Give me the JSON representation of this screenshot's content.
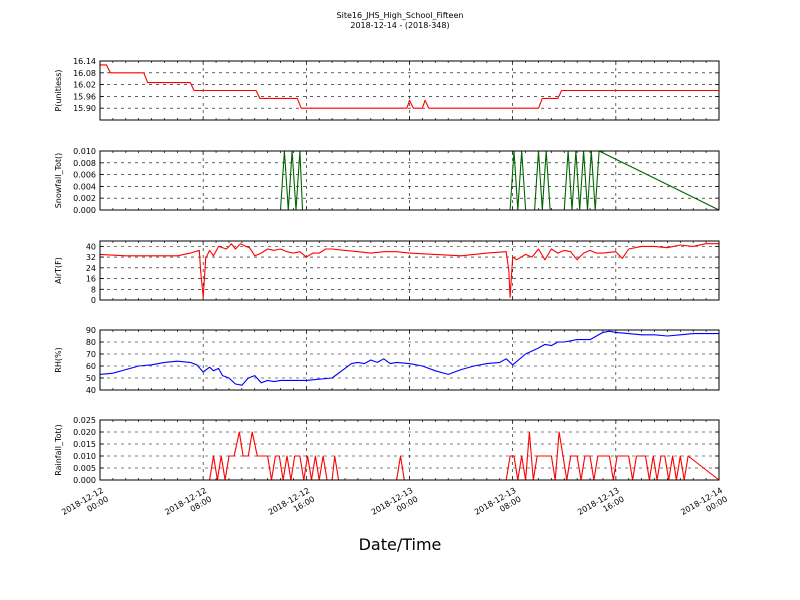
{
  "figure": {
    "title": "Site16_JHS_High_School_Fifteen",
    "subtitle": "2018-12-14 - (2018-348)",
    "xlabel": "Date/Time"
  },
  "chart_data": [
    {
      "type": "line",
      "ylabel": "P(unitless)",
      "ylim": [
        15.84,
        16.14
      ],
      "yticks": [
        "15.90",
        "15.96",
        "16.02",
        "16.08",
        "16.14"
      ],
      "ytick_values": [
        15.9,
        15.96,
        16.02,
        16.08,
        16.14
      ],
      "xlim": [
        0,
        48
      ],
      "xtick_labels": [
        [
          "2018-12-12",
          "00:00"
        ],
        [
          "2018-12-12",
          "08:00"
        ],
        [
          "2018-12-12",
          "16:00"
        ],
        [
          "2018-12-13",
          "00:00"
        ],
        [
          "2018-12-13",
          "08:00"
        ],
        [
          "2018-12-13",
          "16:00"
        ],
        [
          "2018-12-14",
          "00:00"
        ]
      ],
      "grid": true,
      "series": [
        {
          "color": "#ff0000",
          "x": [
            0,
            0.5,
            0.8,
            1.0,
            3.4,
            3.7,
            7.0,
            7.3,
            12.1,
            12.4,
            15.3,
            15.6,
            23.8,
            24.0,
            24.3,
            25.0,
            25.2,
            25.5,
            34.0,
            34.3,
            35.5,
            35.8,
            48
          ],
          "values": [
            16.12,
            16.12,
            16.08,
            16.08,
            16.08,
            16.03,
            16.03,
            15.99,
            15.99,
            15.95,
            15.95,
            15.9,
            15.9,
            15.94,
            15.9,
            15.9,
            15.94,
            15.9,
            15.9,
            15.95,
            15.95,
            15.99,
            15.99
          ]
        }
      ]
    },
    {
      "type": "line",
      "ylabel": "Snowfall_Tot()",
      "ylim": [
        0,
        0.01
      ],
      "yticks": [
        "0.000",
        "0.002",
        "0.004",
        "0.006",
        "0.008",
        "0.010"
      ],
      "ytick_values": [
        0,
        0.002,
        0.004,
        0.006,
        0.008,
        0.01
      ],
      "xlim": [
        0,
        48
      ],
      "grid": true,
      "series": [
        {
          "color": "#006400",
          "x": [
            0,
            14.0,
            14.3,
            14.6,
            14.9,
            15.2,
            15.5,
            15.7,
            16.0,
            31.8,
            32.1,
            32.4,
            32.7,
            33.0,
            33.7,
            34.0,
            34.3,
            34.6,
            34.9,
            36.0,
            36.3,
            36.6,
            36.9,
            37.2,
            37.5,
            37.8,
            38.1,
            38.4,
            38.7,
            48
          ],
          "values": [
            0,
            0,
            0.01,
            0,
            0.01,
            0,
            0.01,
            0,
            0,
            0,
            0.01,
            0,
            0.01,
            0,
            0,
            0.01,
            0,
            0.01,
            0,
            0,
            0.01,
            0,
            0.01,
            0,
            0.01,
            0,
            0.01,
            0,
            0.01,
            0
          ]
        }
      ]
    },
    {
      "type": "line",
      "ylabel": "AirT(F)",
      "ylim": [
        0,
        44
      ],
      "yticks": [
        "0",
        "8",
        "16",
        "24",
        "32",
        "40"
      ],
      "ytick_values": [
        0,
        8,
        16,
        24,
        32,
        40
      ],
      "xlim": [
        0,
        48
      ],
      "grid": true,
      "series": [
        {
          "color": "#ff0000",
          "x": [
            0,
            2,
            4,
            6,
            7,
            7.7,
            7.8,
            8.0,
            8.2,
            8.5,
            8.8,
            9.2,
            9.8,
            10.2,
            10.5,
            10.9,
            11.3,
            11.6,
            12.0,
            12.5,
            13.0,
            13.5,
            14.0,
            14.5,
            15.0,
            15.5,
            16.0,
            16.5,
            17.0,
            17.5,
            18.0,
            19.0,
            20.0,
            21.0,
            22.0,
            23.0,
            24.0,
            26.0,
            28.0,
            30.0,
            31.5,
            31.7,
            31.8,
            32.0,
            32.3,
            33.0,
            33.5,
            34.0,
            34.5,
            35.0,
            35.5,
            36.0,
            36.5,
            37.0,
            37.5,
            38.0,
            38.5,
            39.0,
            40.0,
            40.5,
            41.0,
            42.0,
            43.0,
            44.0,
            45.0,
            46.0,
            47.0,
            48.0
          ],
          "values": [
            34,
            33,
            33,
            33,
            35,
            37,
            22,
            2,
            31,
            37,
            33,
            40,
            38,
            42,
            38,
            42,
            40,
            39,
            33,
            35,
            38,
            37,
            38,
            36,
            35,
            36,
            32,
            35,
            35,
            38,
            38,
            37,
            36,
            35,
            36,
            36,
            35,
            34,
            33,
            35,
            36,
            22,
            2,
            32,
            30,
            34,
            32,
            38,
            30,
            38,
            35,
            37,
            36,
            30,
            35,
            37,
            35,
            35,
            36,
            31,
            38,
            40,
            40,
            39,
            41,
            40,
            42,
            42
          ]
        }
      ]
    },
    {
      "type": "line",
      "ylabel": "RH(%)",
      "ylim": [
        40,
        90
      ],
      "yticks": [
        "40",
        "50",
        "60",
        "70",
        "80",
        "90"
      ],
      "ytick_values": [
        40,
        50,
        60,
        70,
        80,
        90
      ],
      "xlim": [
        0,
        48
      ],
      "grid": true,
      "series": [
        {
          "color": "#0000ff",
          "x": [
            0,
            1,
            2,
            3,
            4,
            5,
            6,
            7,
            7.5,
            8.0,
            8.5,
            8.8,
            9.2,
            9.5,
            10.0,
            10.5,
            11.0,
            11.5,
            12.0,
            12.5,
            13.0,
            13.5,
            14.0,
            15.0,
            16.0,
            17.0,
            18.0,
            19.0,
            19.5,
            20.0,
            20.5,
            21.0,
            21.5,
            22.0,
            22.5,
            23.0,
            24.0,
            25.0,
            26.0,
            27.0,
            28.0,
            29.0,
            30.0,
            31.0,
            31.5,
            32.0,
            33.0,
            34.0,
            34.5,
            35.0,
            35.5,
            36.0,
            37.0,
            38.0,
            38.5,
            39.0,
            39.5,
            40.0,
            41.0,
            42.0,
            43.0,
            44.0,
            45.0,
            46.0,
            47.0,
            48.0
          ],
          "values": [
            53,
            54,
            57,
            60,
            61,
            63,
            64,
            63,
            61,
            55,
            59,
            56,
            58,
            52,
            50,
            45,
            44,
            50,
            52,
            46,
            48,
            47,
            48,
            48,
            48,
            49,
            50,
            58,
            62,
            63,
            62,
            65,
            63,
            66,
            62,
            63,
            62,
            60,
            56,
            53,
            57,
            60,
            62,
            63,
            66,
            61,
            70,
            75,
            78,
            77,
            80,
            80,
            82,
            82,
            85,
            88,
            89,
            88,
            87,
            86,
            86,
            85,
            86,
            87,
            87,
            87
          ]
        }
      ]
    },
    {
      "type": "line",
      "ylabel": "Rainfall_Tot()",
      "ylim": [
        0,
        0.025
      ],
      "yticks": [
        "0.000",
        "0.005",
        "0.010",
        "0.015",
        "0.020",
        "0.025"
      ],
      "ytick_values": [
        0,
        0.005,
        0.01,
        0.015,
        0.02,
        0.025
      ],
      "xlim": [
        0,
        48
      ],
      "grid": true,
      "series": [
        {
          "color": "#ff0000",
          "x": [
            0,
            8.5,
            8.8,
            9.1,
            9.4,
            9.7,
            10.0,
            10.4,
            10.8,
            11.1,
            11.5,
            11.8,
            12.2,
            12.5,
            13.0,
            13.3,
            13.6,
            13.9,
            14.2,
            14.5,
            14.8,
            15.1,
            15.5,
            15.8,
            16.1,
            16.4,
            16.7,
            17.0,
            17.3,
            17.6,
            18.0,
            18.2,
            18.5,
            18.8,
            23.0,
            23.3,
            23.6,
            31.5,
            31.8,
            32.1,
            32.4,
            32.7,
            33.0,
            33.3,
            33.6,
            33.9,
            34.2,
            34.5,
            35.0,
            35.3,
            35.6,
            35.9,
            36.2,
            36.5,
            37.0,
            37.3,
            37.6,
            38.0,
            38.3,
            38.6,
            38.9,
            39.2,
            39.5,
            39.8,
            40.1,
            40.4,
            40.7,
            41.0,
            41.3,
            41.6,
            42.0,
            42.3,
            42.6,
            42.9,
            43.2,
            43.5,
            43.8,
            44.1,
            44.4,
            44.7,
            45.0,
            45.3,
            45.6,
            48.0
          ],
          "values": [
            0,
            0,
            0.01,
            0,
            0.01,
            0,
            0.01,
            0.01,
            0.02,
            0.01,
            0.01,
            0.02,
            0.01,
            0.01,
            0.01,
            0,
            0.01,
            0.01,
            0,
            0.01,
            0,
            0.01,
            0.01,
            0,
            0.01,
            0,
            0.01,
            0,
            0.01,
            0,
            0,
            0.01,
            0,
            0,
            0,
            0.01,
            0,
            0,
            0.01,
            0.01,
            0,
            0.01,
            0,
            0.02,
            0,
            0.01,
            0.01,
            0.01,
            0.01,
            0,
            0.02,
            0.01,
            0,
            0.01,
            0.01,
            0,
            0.01,
            0.01,
            0,
            0.01,
            0.01,
            0.01,
            0.01,
            0,
            0.01,
            0.01,
            0.01,
            0.01,
            0,
            0.01,
            0.01,
            0.01,
            0,
            0.01,
            0,
            0.01,
            0.01,
            0,
            0.01,
            0,
            0.01,
            0,
            0.01,
            0
          ]
        }
      ]
    }
  ]
}
